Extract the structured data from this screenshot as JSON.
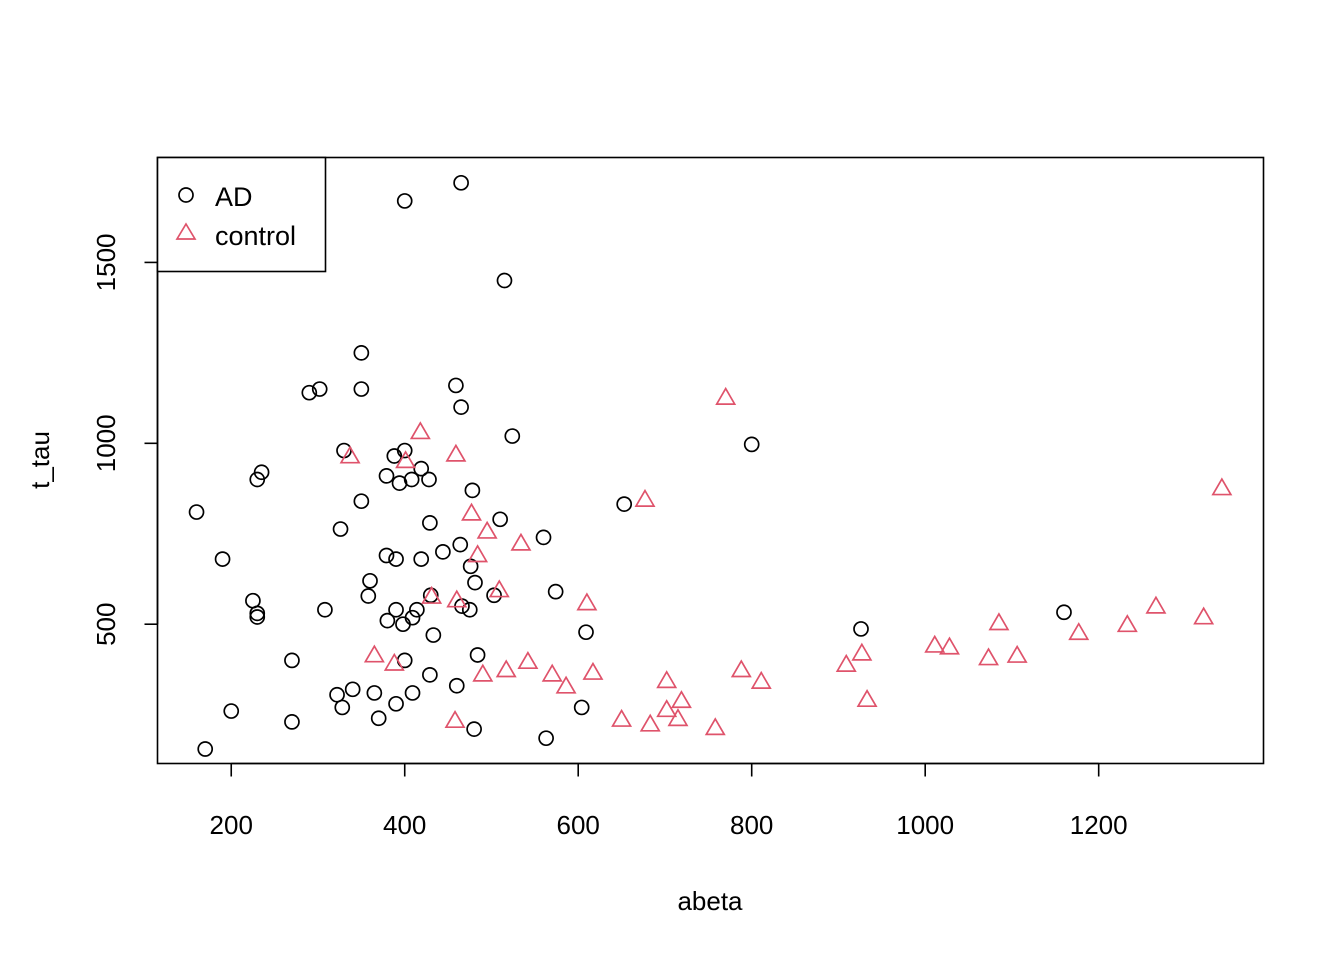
{
  "chart_data": {
    "type": "scatter",
    "title": "",
    "xlabel": "abeta",
    "ylabel": "t_tau",
    "xlim": [
      115,
      1390
    ],
    "ylim": [
      115,
      1790
    ],
    "x_ticks": [
      200,
      400,
      600,
      800,
      1000,
      1200
    ],
    "y_ticks": [
      500,
      1000,
      1500
    ],
    "grid": false,
    "legend_position": "top-left",
    "colors": {
      "AD": "#000000",
      "control": "#DF536B"
    },
    "series": [
      {
        "name": "AD",
        "marker": "circle",
        "points": [
          [
            160,
            810
          ],
          [
            170,
            155
          ],
          [
            190,
            680
          ],
          [
            200,
            260
          ],
          [
            225,
            565
          ],
          [
            230,
            520
          ],
          [
            230,
            530
          ],
          [
            230,
            900
          ],
          [
            235,
            920
          ],
          [
            270,
            230
          ],
          [
            270,
            400
          ],
          [
            290,
            1140
          ],
          [
            302,
            1150
          ],
          [
            308,
            540
          ],
          [
            322,
            305
          ],
          [
            326,
            763
          ],
          [
            328,
            270
          ],
          [
            330,
            980
          ],
          [
            340,
            320
          ],
          [
            350,
            1250
          ],
          [
            350,
            1150
          ],
          [
            350,
            840
          ],
          [
            358,
            578
          ],
          [
            360,
            620
          ],
          [
            365,
            310
          ],
          [
            370,
            240
          ],
          [
            379,
            910
          ],
          [
            379,
            690
          ],
          [
            380,
            510
          ],
          [
            388,
            965
          ],
          [
            390,
            680
          ],
          [
            390,
            540
          ],
          [
            390,
            280
          ],
          [
            394,
            890
          ],
          [
            398,
            500
          ],
          [
            400,
            1670
          ],
          [
            400,
            980
          ],
          [
            400,
            400
          ],
          [
            408,
            900
          ],
          [
            409,
            310
          ],
          [
            409,
            518
          ],
          [
            414,
            540
          ],
          [
            419,
            930
          ],
          [
            419,
            680
          ],
          [
            428,
            900
          ],
          [
            429,
            360
          ],
          [
            429,
            780
          ],
          [
            430,
            580
          ],
          [
            433,
            470
          ],
          [
            444,
            700
          ],
          [
            459,
            1160
          ],
          [
            460,
            330
          ],
          [
            464,
            720
          ],
          [
            465,
            1720
          ],
          [
            465,
            1100
          ],
          [
            466,
            550
          ],
          [
            475,
            540
          ],
          [
            476,
            660
          ],
          [
            478,
            870
          ],
          [
            480,
            210
          ],
          [
            481,
            615
          ],
          [
            484,
            415
          ],
          [
            503,
            580
          ],
          [
            510,
            790
          ],
          [
            515,
            1450
          ],
          [
            524,
            1020
          ],
          [
            560,
            740
          ],
          [
            563,
            185
          ],
          [
            574,
            590
          ],
          [
            604,
            270
          ],
          [
            609,
            478
          ],
          [
            653,
            832
          ],
          [
            800,
            997
          ],
          [
            926,
            487
          ],
          [
            1160,
            533
          ]
        ]
      },
      {
        "name": "control",
        "marker": "triangle",
        "points": [
          [
            337,
            963
          ],
          [
            365,
            413
          ],
          [
            388,
            390
          ],
          [
            401,
            950
          ],
          [
            418,
            1030
          ],
          [
            431,
            575
          ],
          [
            458,
            232
          ],
          [
            459,
            968
          ],
          [
            460,
            565
          ],
          [
            477,
            805
          ],
          [
            484,
            690
          ],
          [
            490,
            360
          ],
          [
            495,
            755
          ],
          [
            509,
            593
          ],
          [
            517,
            372
          ],
          [
            534,
            722
          ],
          [
            542,
            395
          ],
          [
            570,
            360
          ],
          [
            586,
            327
          ],
          [
            610,
            557
          ],
          [
            617,
            365
          ],
          [
            650,
            235
          ],
          [
            677,
            843
          ],
          [
            683,
            222
          ],
          [
            702,
            342
          ],
          [
            702,
            262
          ],
          [
            715,
            237
          ],
          [
            719,
            287
          ],
          [
            758,
            212
          ],
          [
            770,
            1125
          ],
          [
            788,
            372
          ],
          [
            811,
            340
          ],
          [
            909,
            387
          ],
          [
            927,
            418
          ],
          [
            933,
            290
          ],
          [
            1011,
            440
          ],
          [
            1028,
            435
          ],
          [
            1073,
            405
          ],
          [
            1085,
            502
          ],
          [
            1106,
            412
          ],
          [
            1177,
            475
          ],
          [
            1233,
            497
          ],
          [
            1266,
            548
          ],
          [
            1321,
            518
          ],
          [
            1342,
            875
          ]
        ]
      }
    ]
  }
}
